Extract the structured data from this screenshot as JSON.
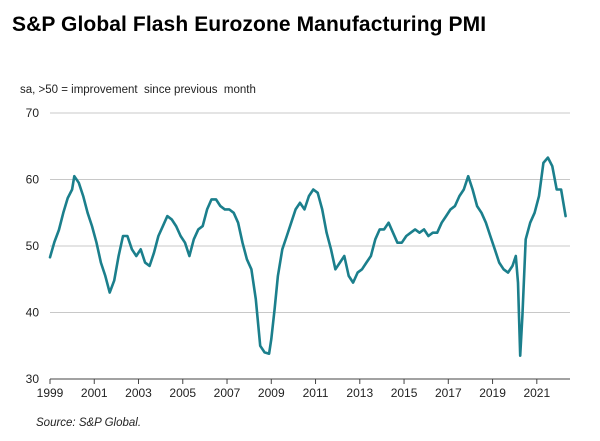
{
  "title": "S&P Global Flash Eurozone Manufacturing PMI",
  "source": "Source:  S&P Global.",
  "chart_data": {
    "type": "line",
    "title": "S&P Global Flash Eurozone Manufacturing PMI",
    "ylabel": "sa, >50 = improvement  since previous  month",
    "xlabel": "",
    "ylim": [
      30,
      70
    ],
    "xlim": [
      1999.0,
      2022.5
    ],
    "yticks": [
      30,
      40,
      50,
      60,
      70
    ],
    "xticks": [
      "1999",
      "2001",
      "2003",
      "2005",
      "2007",
      "2009",
      "2011",
      "2013",
      "2015",
      "2017",
      "2019",
      "2021"
    ],
    "grid": "horizontal",
    "line_color": "#1b7f8c",
    "series": [
      {
        "name": "Flash Eurozone Manufacturing PMI",
        "x": [
          1999.0,
          1999.2,
          1999.4,
          1999.6,
          1999.8,
          2000.0,
          2000.1,
          2000.3,
          2000.5,
          2000.7,
          2000.9,
          2001.1,
          2001.3,
          2001.5,
          2001.7,
          2001.9,
          2002.1,
          2002.3,
          2002.5,
          2002.7,
          2002.9,
          2003.1,
          2003.3,
          2003.5,
          2003.7,
          2003.9,
          2004.1,
          2004.3,
          2004.5,
          2004.7,
          2004.9,
          2005.1,
          2005.3,
          2005.5,
          2005.7,
          2005.9,
          2006.1,
          2006.3,
          2006.5,
          2006.7,
          2006.9,
          2007.1,
          2007.3,
          2007.5,
          2007.7,
          2007.9,
          2008.1,
          2008.3,
          2008.5,
          2008.7,
          2008.9,
          2009.0,
          2009.15,
          2009.3,
          2009.5,
          2009.7,
          2009.9,
          2010.1,
          2010.3,
          2010.5,
          2010.7,
          2010.9,
          2011.1,
          2011.3,
          2011.5,
          2011.7,
          2011.9,
          2012.1,
          2012.3,
          2012.5,
          2012.7,
          2012.9,
          2013.1,
          2013.3,
          2013.5,
          2013.7,
          2013.9,
          2014.1,
          2014.3,
          2014.5,
          2014.7,
          2014.9,
          2015.1,
          2015.3,
          2015.5,
          2015.7,
          2015.9,
          2016.1,
          2016.3,
          2016.5,
          2016.7,
          2016.9,
          2017.1,
          2017.3,
          2017.5,
          2017.7,
          2017.9,
          2018.1,
          2018.3,
          2018.5,
          2018.7,
          2018.9,
          2019.1,
          2019.3,
          2019.5,
          2019.7,
          2019.9,
          2020.05,
          2020.15,
          2020.25,
          2020.35,
          2020.5,
          2020.7,
          2020.9,
          2021.1,
          2021.3,
          2021.5,
          2021.7,
          2021.9,
          2022.1,
          2022.3
        ],
        "values": [
          48.3,
          50.6,
          52.4,
          55.0,
          57.2,
          58.5,
          60.5,
          59.5,
          57.5,
          55.0,
          53.0,
          50.5,
          47.5,
          45.5,
          43.0,
          44.8,
          48.5,
          51.5,
          51.5,
          49.5,
          48.5,
          49.5,
          47.5,
          47.0,
          49.0,
          51.5,
          53.0,
          54.5,
          54.0,
          53.0,
          51.5,
          50.5,
          48.5,
          51.0,
          52.5,
          53.0,
          55.5,
          57.0,
          57.0,
          56.0,
          55.5,
          55.5,
          55.0,
          53.5,
          50.5,
          48.0,
          46.5,
          42.0,
          35.0,
          34.0,
          33.8,
          36.0,
          40.5,
          45.5,
          49.5,
          51.5,
          53.5,
          55.5,
          56.5,
          55.5,
          57.5,
          58.5,
          58.0,
          55.5,
          52.0,
          49.5,
          46.5,
          47.5,
          48.5,
          45.5,
          44.5,
          46.0,
          46.5,
          47.5,
          48.5,
          51.0,
          52.5,
          52.5,
          53.5,
          52.0,
          50.5,
          50.5,
          51.5,
          52.0,
          52.5,
          52.0,
          52.5,
          51.5,
          52.0,
          52.0,
          53.5,
          54.5,
          55.5,
          56.0,
          57.5,
          58.5,
          60.5,
          58.5,
          56.0,
          55.0,
          53.5,
          51.5,
          49.5,
          47.5,
          46.5,
          46.0,
          47.0,
          48.5,
          44.5,
          33.5,
          39.5,
          51.0,
          53.5,
          55.0,
          57.5,
          62.5,
          63.3,
          62.0,
          58.5,
          58.5,
          54.5
        ]
      }
    ]
  }
}
